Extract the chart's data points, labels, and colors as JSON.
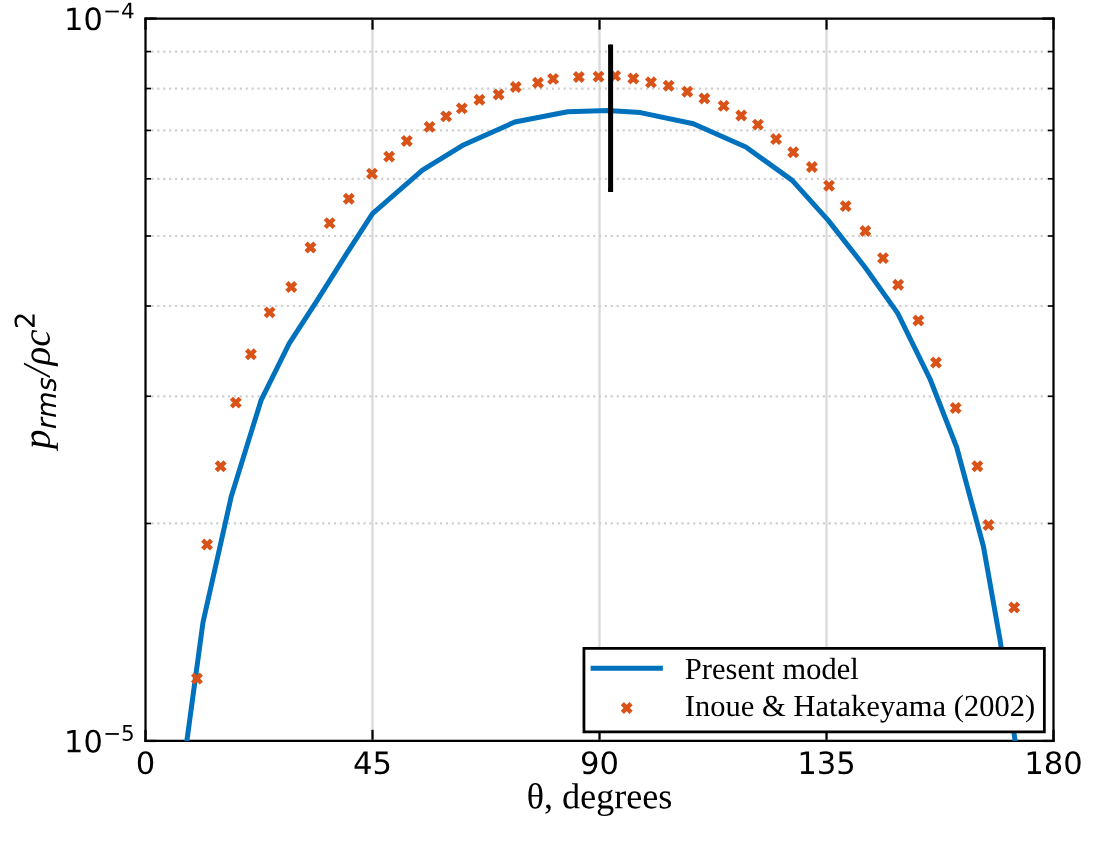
{
  "chart_data": {
    "type": "line",
    "xlabel": "θ, degrees",
    "ylabel": "p$_{rms}$/ρc$^{2}$",
    "log": "y",
    "grid": true,
    "legend": "bottom right",
    "xlim": [
      0,
      180
    ],
    "xticks": [
      0,
      45,
      90,
      135,
      180
    ],
    "ylim": [
      1e-05,
      0.0001
    ],
    "yticks": [
      {
        "value": 1e-05,
        "label": "10$^{−5}$"
      },
      {
        "value": 0.0001,
        "label": "10$^{−4}$"
      }
    ],
    "series": [
      {
        "name": "Present model",
        "color": "#0072bd",
        "marker": "none",
        "line_style": "solid",
        "x": [
          8.2,
          11.4,
          17.0,
          22.9,
          28.5,
          34.0,
          39.9,
          45.0,
          54.9,
          62.8,
          73.2,
          83.7,
          91.6,
          98.1,
          108.6,
          119.0,
          128.2,
          135.3,
          142.6,
          149.1,
          155.6,
          160.8,
          166.1,
          169.4,
          172.4
        ],
        "values": [
          1e-05,
          1.46e-05,
          2.18e-05,
          2.96e-05,
          3.55e-05,
          4.07e-05,
          4.73e-05,
          5.37e-05,
          6.17e-05,
          6.67e-05,
          7.19e-05,
          7.43e-05,
          7.46e-05,
          7.41e-05,
          7.15e-05,
          6.64e-05,
          5.97e-05,
          5.26e-05,
          4.53e-05,
          3.91e-05,
          3.16e-05,
          2.55e-05,
          1.86e-05,
          1.38e-05,
          1e-05
        ]
      },
      {
        "name": "Inoue & Hatakeyama (2002)",
        "type": "scatter",
        "color": "#d95319",
        "marker": "cross",
        "x": [
          10.2,
          12.2,
          14.9,
          17.9,
          20.9,
          24.6,
          28.9,
          32.7,
          36.5,
          40.3,
          44.9,
          48.3,
          51.8,
          56.3,
          59.6,
          62.7,
          66.2,
          70.0,
          73.4,
          77.8,
          80.8,
          85.9,
          89.8,
          93.1,
          96.7,
          100.2,
          103.7,
          107.4,
          110.8,
          114.6,
          118.1,
          121.4,
          125.0,
          128.4,
          132.1,
          135.5,
          138.8,
          142.7,
          146.2,
          149.2,
          153.2,
          156.7,
          160.6,
          164.9,
          167.1,
          172.2
        ],
        "values": [
          1.22e-05,
          1.87e-05,
          2.4e-05,
          2.94e-05,
          3.43e-05,
          3.92e-05,
          4.25e-05,
          4.82e-05,
          5.21e-05,
          5.63e-05,
          6.1e-05,
          6.44e-05,
          6.77e-05,
          7.08e-05,
          7.32e-05,
          7.51e-05,
          7.72e-05,
          7.85e-05,
          8.04e-05,
          8.15e-05,
          8.25e-05,
          8.3e-05,
          8.31e-05,
          8.33e-05,
          8.26e-05,
          8.16e-05,
          8.07e-05,
          7.92e-05,
          7.75e-05,
          7.57e-05,
          7.34e-05,
          7.13e-05,
          6.81e-05,
          6.53e-05,
          6.23e-05,
          5.87e-05,
          5.5e-05,
          5.08e-05,
          4.66e-05,
          4.28e-05,
          3.82e-05,
          3.34e-05,
          2.89e-05,
          2.4e-05,
          1.99e-05,
          1.53e-05
        ]
      },
      {
        "type": "line",
        "color": "#000000",
        "x": [
          92.2,
          92.2
        ],
        "values": [
          5.8e-05,
          9.13e-05
        ]
      }
    ]
  }
}
